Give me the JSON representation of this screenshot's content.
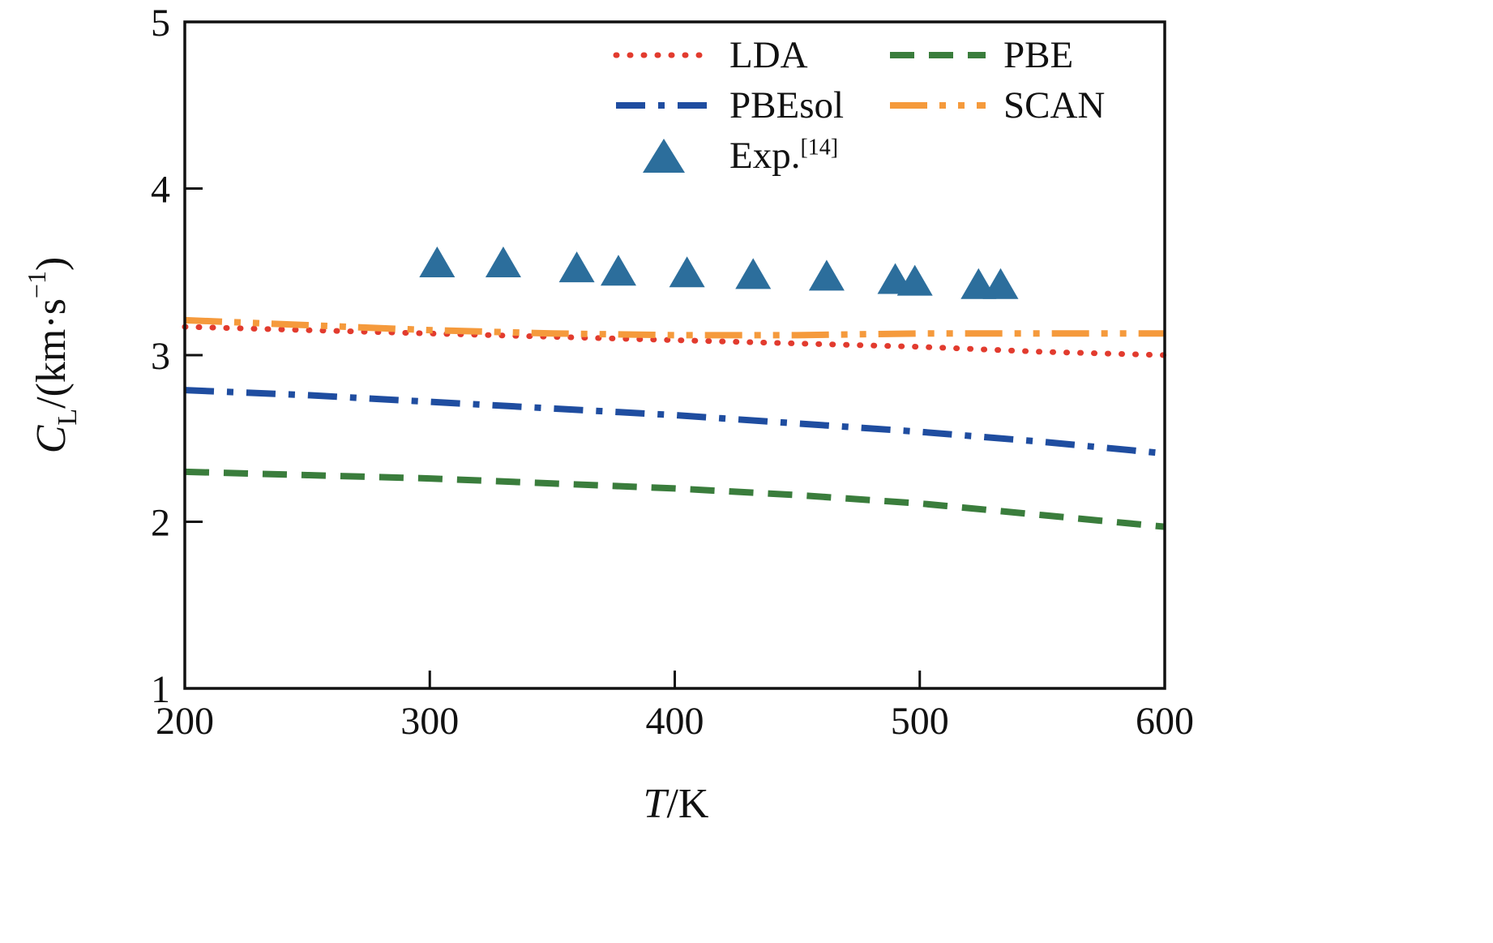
{
  "axes": {
    "x_label": {
      "t": "T",
      "rest": "/K"
    },
    "y_label": {
      "c": "C",
      "sub": "L",
      "mid": "/(km·s",
      "sup": "−1",
      "close": ")"
    }
  },
  "chart_data": {
    "type": "line",
    "title": "",
    "xlabel": "T/K",
    "ylabel": "C_L/(km·s−1)",
    "xlim": [
      200,
      600
    ],
    "ylim": [
      1,
      5
    ],
    "xticks": [
      200,
      300,
      400,
      500,
      600
    ],
    "yticks": [
      1,
      2,
      3,
      4,
      5
    ],
    "grid": false,
    "legend_position": "upper center",
    "x_samples": [
      200,
      250,
      300,
      350,
      400,
      450,
      500,
      550,
      600
    ],
    "series": [
      {
        "name": "LDA",
        "color": "#e23b2e",
        "style": "dotted",
        "y": [
          3.17,
          3.15,
          3.13,
          3.11,
          3.09,
          3.07,
          3.05,
          3.02,
          3.0
        ]
      },
      {
        "name": "PBE",
        "color": "#3a7d3c",
        "style": "dashed",
        "y": [
          2.3,
          2.28,
          2.26,
          2.23,
          2.2,
          2.16,
          2.11,
          2.04,
          1.97
        ]
      },
      {
        "name": "PBEsol",
        "color": "#1f4da0",
        "style": "dashdot",
        "y": [
          2.79,
          2.76,
          2.72,
          2.68,
          2.64,
          2.59,
          2.54,
          2.48,
          2.41
        ]
      },
      {
        "name": "SCAN",
        "color": "#f59a3c",
        "style": "dashdotdot",
        "y": [
          3.21,
          3.18,
          3.15,
          3.13,
          3.12,
          3.12,
          3.13,
          3.13,
          3.13
        ]
      },
      {
        "name": "Exp.[14]",
        "color": "#2c6e9c",
        "style": "triangle",
        "points": [
          [
            303,
            3.55
          ],
          [
            330,
            3.55
          ],
          [
            360,
            3.52
          ],
          [
            377,
            3.5
          ],
          [
            405,
            3.49
          ],
          [
            432,
            3.48
          ],
          [
            462,
            3.47
          ],
          [
            490,
            3.45
          ],
          [
            498,
            3.44
          ],
          [
            524,
            3.42
          ],
          [
            533,
            3.42
          ]
        ]
      }
    ]
  },
  "legend": {
    "entries": [
      {
        "series": "LDA",
        "label": "LDA"
      },
      {
        "series": "PBE",
        "label": "PBE"
      },
      {
        "series": "PBEsol",
        "label": "PBEsol"
      },
      {
        "series": "SCAN",
        "label": "SCAN"
      },
      {
        "series": "Exp.[14]",
        "label": "Exp.",
        "sup": "[14]"
      }
    ]
  }
}
